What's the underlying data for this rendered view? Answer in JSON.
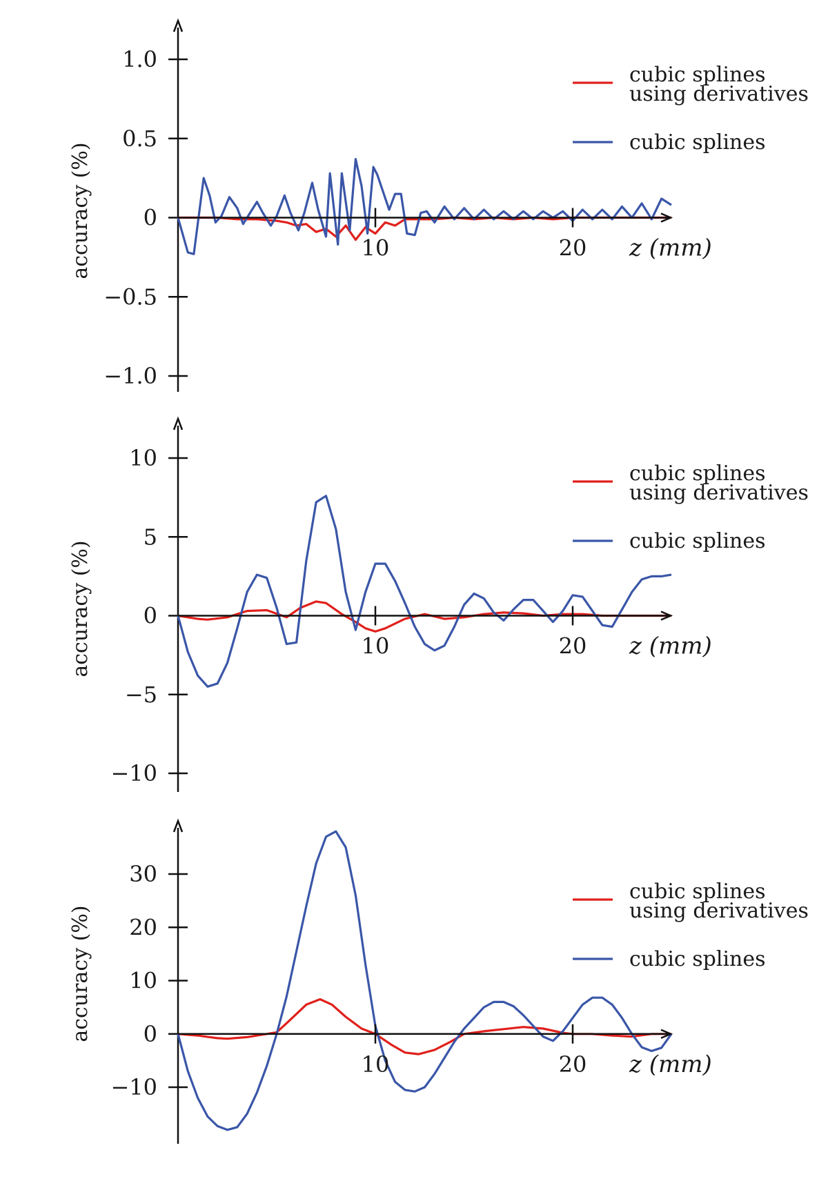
{
  "colors": {
    "red": "#e0201b",
    "blue": "#3a56a8",
    "axis": "#111111"
  },
  "chart_data": [
    {
      "type": "line",
      "ylabel": "accuracy (%)",
      "xlabel": "z (mm)",
      "xlim": [
        0,
        25
      ],
      "ylim": [
        -1.0,
        1.0
      ],
      "xticks": [
        10,
        20
      ],
      "xtick_labels": [
        "10",
        "20"
      ],
      "yticks": [
        1.0,
        0.5,
        0,
        -0.5,
        -1.0
      ],
      "ytick_labels": [
        "1.0",
        "0.5",
        "0",
        "−0.5",
        "−1.0"
      ],
      "legend_position": "top-right",
      "series": [
        {
          "name": "cubic splines\nusing derivatives",
          "color": "#e0201b",
          "x": [
            0,
            1,
            2,
            3,
            4,
            5,
            5.5,
            6,
            6.5,
            7,
            7.5,
            8,
            8.5,
            9,
            9.5,
            10,
            10.5,
            11,
            11.5,
            12,
            13,
            14,
            15,
            16,
            17,
            18,
            19,
            20,
            21,
            22,
            23,
            24,
            25
          ],
          "y": [
            0,
            0,
            0,
            -0.01,
            -0.01,
            -0.02,
            -0.03,
            -0.05,
            -0.04,
            -0.09,
            -0.07,
            -0.12,
            -0.05,
            -0.14,
            -0.06,
            -0.1,
            -0.03,
            -0.05,
            -0.01,
            -0.01,
            -0.01,
            0,
            -0.01,
            0,
            -0.01,
            0,
            -0.01,
            0,
            0,
            0,
            0,
            0,
            0
          ]
        },
        {
          "name": "cubic splines",
          "color": "#3a56a8",
          "x": [
            0,
            0.5,
            0.8,
            1.3,
            1.6,
            1.9,
            2.2,
            2.6,
            3.0,
            3.3,
            3.6,
            4.0,
            4.3,
            4.7,
            5.0,
            5.4,
            5.7,
            6.1,
            6.4,
            6.8,
            7.1,
            7.5,
            7.7,
            8.1,
            8.3,
            8.7,
            9.0,
            9.3,
            9.6,
            9.9,
            10.1,
            10.7,
            11.0,
            11.3,
            11.6,
            12.0,
            12.3,
            12.6,
            13.0,
            13.5,
            14.0,
            14.5,
            15.0,
            15.5,
            16.0,
            16.5,
            17.0,
            17.5,
            18.0,
            18.5,
            19.0,
            19.5,
            20.0,
            20.5,
            21.0,
            21.5,
            22.0,
            22.5,
            23.0,
            23.5,
            24.0,
            24.5,
            25.0
          ],
          "y": [
            0,
            -0.22,
            -0.23,
            0.25,
            0.14,
            -0.03,
            0.01,
            0.13,
            0.06,
            -0.04,
            0.02,
            0.1,
            0.03,
            -0.05,
            0.01,
            0.14,
            0.03,
            -0.08,
            0.03,
            0.22,
            0.05,
            -0.12,
            0.28,
            -0.17,
            0.28,
            -0.08,
            0.37,
            0.2,
            -0.1,
            0.32,
            0.27,
            0.05,
            0.15,
            0.15,
            -0.1,
            -0.11,
            0.03,
            0.04,
            -0.03,
            0.07,
            -0.01,
            0.06,
            -0.01,
            0.05,
            -0.01,
            0.04,
            -0.01,
            0.04,
            -0.01,
            0.04,
            0,
            0.04,
            -0.02,
            0.05,
            -0.01,
            0.05,
            -0.01,
            0.07,
            0,
            0.09,
            -0.01,
            0.12,
            0.08
          ]
        }
      ]
    },
    {
      "type": "line",
      "ylabel": "accuracy (%)",
      "xlabel": "z (mm)",
      "xlim": [
        0,
        25
      ],
      "ylim": [
        -10,
        10
      ],
      "xticks": [
        10,
        20
      ],
      "xtick_labels": [
        "10",
        "20"
      ],
      "yticks": [
        10,
        5,
        0,
        -5,
        -10
      ],
      "ytick_labels": [
        "10",
        "5",
        "0",
        "−5",
        "−10"
      ],
      "legend_position": "top-right",
      "series": [
        {
          "name": "cubic splines\nusing derivatives",
          "color": "#e0201b",
          "x": [
            0,
            1,
            1.5,
            2.5,
            3.5,
            4.5,
            5.5,
            6.2,
            7,
            7.5,
            8.3,
            9,
            9.5,
            10,
            10.5,
            11.5,
            12.5,
            13.5,
            14.5,
            15.5,
            16.5,
            17.5,
            18.5,
            19.5,
            20.5,
            21.5,
            22.5,
            23.5,
            24.5,
            25
          ],
          "y": [
            0,
            -0.2,
            -0.25,
            -0.1,
            0.3,
            0.35,
            -0.1,
            0.5,
            0.9,
            0.8,
            0.1,
            -0.4,
            -0.8,
            -1.0,
            -0.8,
            -0.2,
            0.1,
            -0.2,
            -0.1,
            0.1,
            0.2,
            0.15,
            0,
            0.1,
            0.1,
            0,
            0,
            0,
            0,
            0
          ]
        },
        {
          "name": "cubic splines",
          "color": "#3a56a8",
          "x": [
            0,
            0.5,
            1.0,
            1.5,
            2.0,
            2.5,
            3.0,
            3.5,
            4.0,
            4.5,
            5.0,
            5.5,
            6.0,
            6.5,
            7.0,
            7.5,
            8.0,
            8.5,
            9.0,
            9.5,
            10.0,
            10.5,
            11.0,
            11.5,
            12.0,
            12.5,
            13.0,
            13.5,
            14.0,
            14.5,
            15.0,
            15.5,
            16.0,
            16.5,
            17.0,
            17.5,
            18.0,
            18.5,
            19.0,
            19.5,
            20.0,
            20.5,
            21.0,
            21.5,
            22.0,
            22.5,
            23.0,
            23.5,
            24.0,
            24.5,
            25.0
          ],
          "y": [
            0,
            -2.3,
            -3.8,
            -4.5,
            -4.3,
            -3.0,
            -0.8,
            1.5,
            2.6,
            2.4,
            0.5,
            -1.8,
            -1.7,
            3.5,
            7.2,
            7.6,
            5.5,
            1.5,
            -0.9,
            1.5,
            3.3,
            3.3,
            2.2,
            0.8,
            -0.7,
            -1.8,
            -2.2,
            -1.9,
            -0.7,
            0.7,
            1.4,
            1.1,
            0.2,
            -0.3,
            0.4,
            1.0,
            1.0,
            0.3,
            -0.4,
            0.3,
            1.3,
            1.2,
            0.3,
            -0.6,
            -0.7,
            0.4,
            1.5,
            2.3,
            2.5,
            2.5,
            2.6
          ]
        }
      ]
    },
    {
      "type": "line",
      "ylabel": "accuracy (%)",
      "xlabel": "z (mm)",
      "xlim": [
        0,
        25
      ],
      "ylim": [
        -20,
        40
      ],
      "xticks": [
        10,
        20
      ],
      "xtick_labels": [
        "10",
        "20"
      ],
      "yticks": [
        30,
        20,
        10,
        0,
        -10
      ],
      "ytick_labels": [
        "30",
        "20",
        "10",
        "0",
        "−10"
      ],
      "legend_position": "top-right",
      "series": [
        {
          "name": "cubic splines\nusing derivatives",
          "color": "#e0201b",
          "x": [
            0,
            1,
            2,
            2.5,
            3.5,
            4.5,
            5,
            5.5,
            6.5,
            7.2,
            7.8,
            8.5,
            9.3,
            10,
            10.8,
            11.5,
            12.2,
            13,
            13.8,
            14.5,
            15.5,
            16.5,
            17.5,
            18.5,
            19.5,
            20,
            21,
            22,
            23,
            24,
            25
          ],
          "y": [
            0,
            -0.3,
            -0.8,
            -0.9,
            -0.6,
            0,
            0.3,
            2.0,
            5.5,
            6.5,
            5.5,
            3.2,
            1.0,
            0,
            -2.0,
            -3.5,
            -3.8,
            -3.0,
            -1.5,
            0,
            0.5,
            0.9,
            1.3,
            1.0,
            0.2,
            0,
            0,
            -0.3,
            -0.5,
            0,
            0
          ]
        },
        {
          "name": "cubic splines",
          "color": "#3a56a8",
          "x": [
            0,
            0.5,
            1.0,
            1.5,
            2.0,
            2.5,
            3.0,
            3.5,
            4.0,
            4.5,
            5.0,
            5.5,
            6.0,
            6.5,
            7.0,
            7.5,
            8.0,
            8.5,
            9.0,
            9.5,
            10.0,
            10.5,
            11.0,
            11.5,
            12.0,
            12.5,
            13.0,
            13.5,
            14.0,
            14.5,
            15.0,
            15.5,
            16.0,
            16.5,
            17.0,
            17.5,
            18.0,
            18.5,
            19.0,
            19.5,
            20.0,
            20.5,
            21.0,
            21.5,
            22.0,
            22.5,
            23.0,
            23.5,
            24.0,
            24.5,
            25.0
          ],
          "y": [
            0,
            -7,
            -12,
            -15.5,
            -17.3,
            -18.0,
            -17.5,
            -15.0,
            -11.0,
            -6.0,
            0,
            7.0,
            15.5,
            24.0,
            32.0,
            37.0,
            38.0,
            35.0,
            26.0,
            13.0,
            1.5,
            -5.0,
            -9.0,
            -10.5,
            -10.8,
            -10.0,
            -7.5,
            -4.5,
            -1.5,
            1.0,
            3.0,
            5.0,
            6.0,
            6.0,
            5.2,
            3.5,
            1.5,
            -0.5,
            -1.3,
            0.5,
            3.0,
            5.5,
            6.8,
            6.8,
            5.5,
            3.0,
            0,
            -2.5,
            -3.2,
            -2.6,
            0
          ]
        }
      ]
    }
  ]
}
